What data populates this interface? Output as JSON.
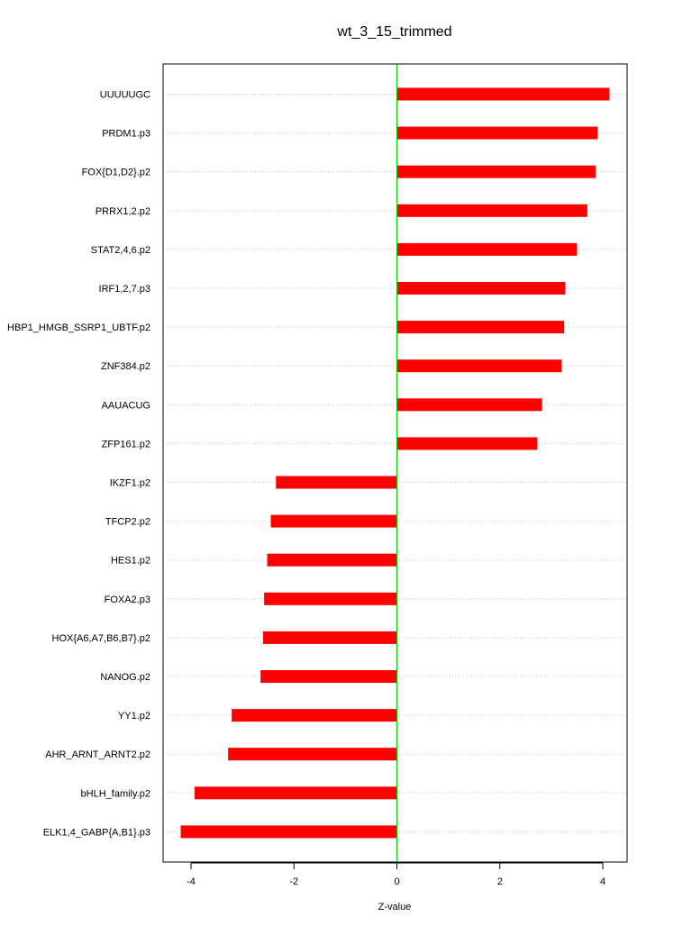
{
  "chart_data": {
    "type": "bar",
    "orientation": "horizontal",
    "title": "wt_3_15_trimmed",
    "xlabel": "Z-value",
    "ylabel": "",
    "xlim": [
      -4.5,
      4.5
    ],
    "xticks": [
      -4,
      -2,
      0,
      2,
      4
    ],
    "grid": true,
    "colors": {
      "bar": "#ff0000",
      "zero_line": "#00cc00",
      "grid": "#c8c8c8",
      "frame": "#000000"
    },
    "categories": [
      "UUUUUGC",
      "PRDM1.p3",
      "FOX{D1,D2}.p2",
      "PRRX1,2.p2",
      "STAT2,4,6.p2",
      "IRF1,2,7.p3",
      "HBP1_HMGB_SSRP1_UBTF.p2",
      "ZNF384.p2",
      "AAUACUG",
      "ZFP161.p2",
      "IKZF1.p2",
      "TFCP2.p2",
      "HES1.p2",
      "FOXA2.p3",
      "HOX{A6,A7,B6,B7}.p2",
      "NANOG.p2",
      "YY1.p2",
      "AHR_ARNT_ARNT2.p2",
      "bHLH_family.p2",
      "ELK1,4_GABP{A,B1}.p3"
    ],
    "values": [
      4.13,
      3.9,
      3.86,
      3.7,
      3.5,
      3.27,
      3.25,
      3.2,
      2.82,
      2.73,
      -2.35,
      -2.45,
      -2.52,
      -2.58,
      -2.6,
      -2.65,
      -3.21,
      -3.28,
      -3.93,
      -4.2
    ]
  }
}
